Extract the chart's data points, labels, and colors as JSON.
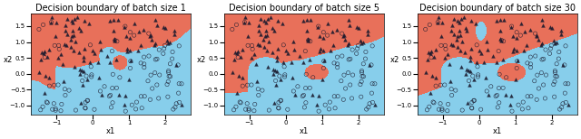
{
  "titles": [
    "Decision boundary of batch size 1",
    "Decision boundary of batch size 5",
    "Decision boundary of batch size 30"
  ],
  "xlabel": "x1",
  "ylabel": "x2",
  "xlim": [
    -1.7,
    2.7
  ],
  "ylim": [
    -1.3,
    1.9
  ],
  "color_red": "#E8705A",
  "color_blue": "#87CEEB",
  "marker_triangle": "^",
  "marker_circle": "o",
  "marker_color": "#1a1a2e",
  "n_points": 200,
  "figsize": [
    6.4,
    1.54
  ],
  "dpi": 100,
  "title_fontsize": 7,
  "axis_fontsize": 6,
  "tick_fontsize": 5
}
